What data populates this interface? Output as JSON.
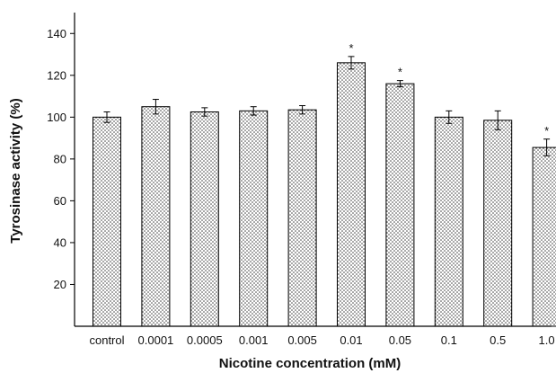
{
  "chart_data": {
    "type": "bar",
    "xlabel": "Nicotine concentration (mM)",
    "ylabel": "Tyrosinase activity (%)",
    "ylim": [
      0,
      150
    ],
    "yticks": [
      20,
      40,
      60,
      80,
      100,
      120,
      140
    ],
    "categories": [
      "control",
      "0.0001",
      "0.0005",
      "0.001",
      "0.005",
      "0.01",
      "0.05",
      "0.1",
      "0.5",
      "1.0"
    ],
    "values": [
      100,
      105,
      102.5,
      103,
      103.5,
      126,
      116,
      100,
      98.5,
      85.5
    ],
    "errors": [
      2.5,
      3.5,
      2,
      2,
      2,
      3,
      1.5,
      3,
      4.5,
      4
    ],
    "significance": [
      "",
      "",
      "",
      "",
      "",
      "*",
      "*",
      "",
      "",
      "*"
    ],
    "bar_fill": "dotted",
    "grid": false,
    "legend": "none"
  }
}
